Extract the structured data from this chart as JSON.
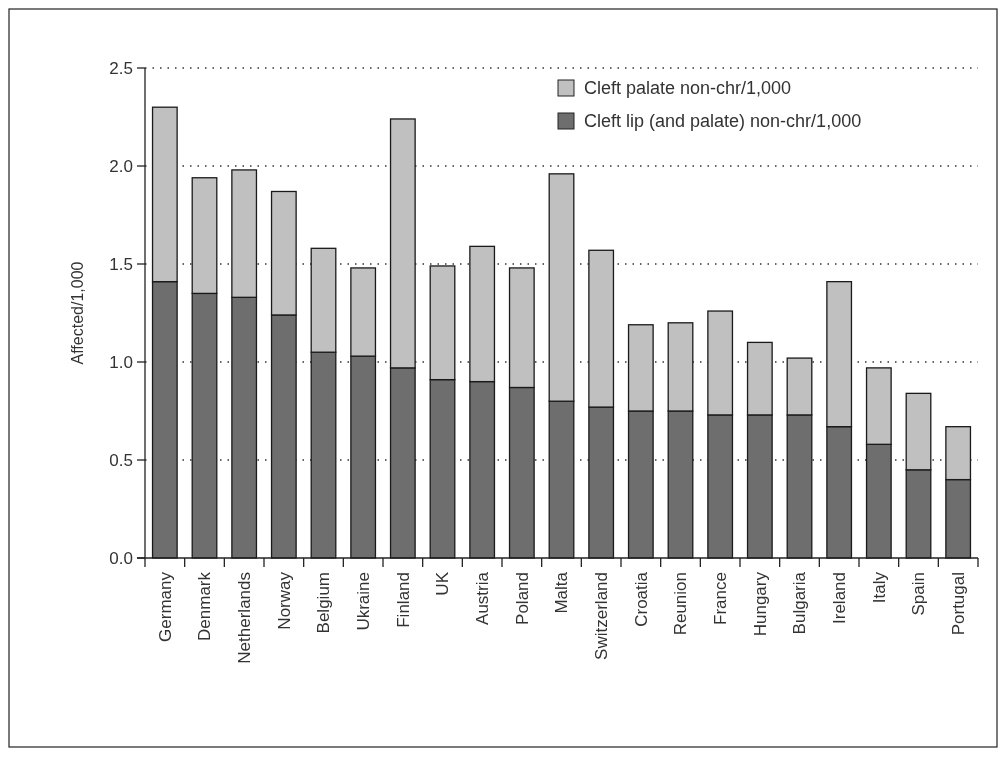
{
  "chart_data": {
    "type": "bar",
    "stacked": true,
    "ylabel": "Affected/1,000",
    "categories": [
      "Germany",
      "Denmark",
      "Netherlands",
      "Norway",
      "Belgium",
      "Ukraine",
      "Finland",
      "UK",
      "Austria",
      "Poland",
      "Malta",
      "Switzerland",
      "Croatia",
      "Reunion",
      "France",
      "Hungary",
      "Bulgaria",
      "Ireland",
      "Italy",
      "Spain",
      "Portugal"
    ],
    "series": [
      {
        "name": "Cleft lip (and palate) non-chr/1,000",
        "color": "#6e6e6e",
        "values": [
          1.41,
          1.35,
          1.33,
          1.24,
          1.05,
          1.03,
          0.97,
          0.91,
          0.9,
          0.87,
          0.8,
          0.77,
          0.75,
          0.75,
          0.73,
          0.73,
          0.73,
          0.67,
          0.58,
          0.45,
          0.4
        ]
      },
      {
        "name": "Cleft palate non-chr/1,000",
        "color": "#c0c0c0",
        "values": [
          0.89,
          0.59,
          0.65,
          0.63,
          0.53,
          0.45,
          1.27,
          0.58,
          0.69,
          0.61,
          1.16,
          0.8,
          0.44,
          0.45,
          0.53,
          0.37,
          0.29,
          0.74,
          0.39,
          0.39,
          0.27
        ]
      }
    ],
    "ylim": [
      0,
      2.5
    ],
    "yticks": [
      {
        "value": 0,
        "label": "0.0"
      },
      {
        "value": 0.5,
        "label": "0.5"
      },
      {
        "value": 1,
        "label": "1.0"
      },
      {
        "value": 1.5,
        "label": "1.5"
      },
      {
        "value": 2,
        "label": "2.0"
      },
      {
        "value": 2.5,
        "label": "2.5"
      }
    ],
    "grid": "y",
    "legend": "top right"
  }
}
